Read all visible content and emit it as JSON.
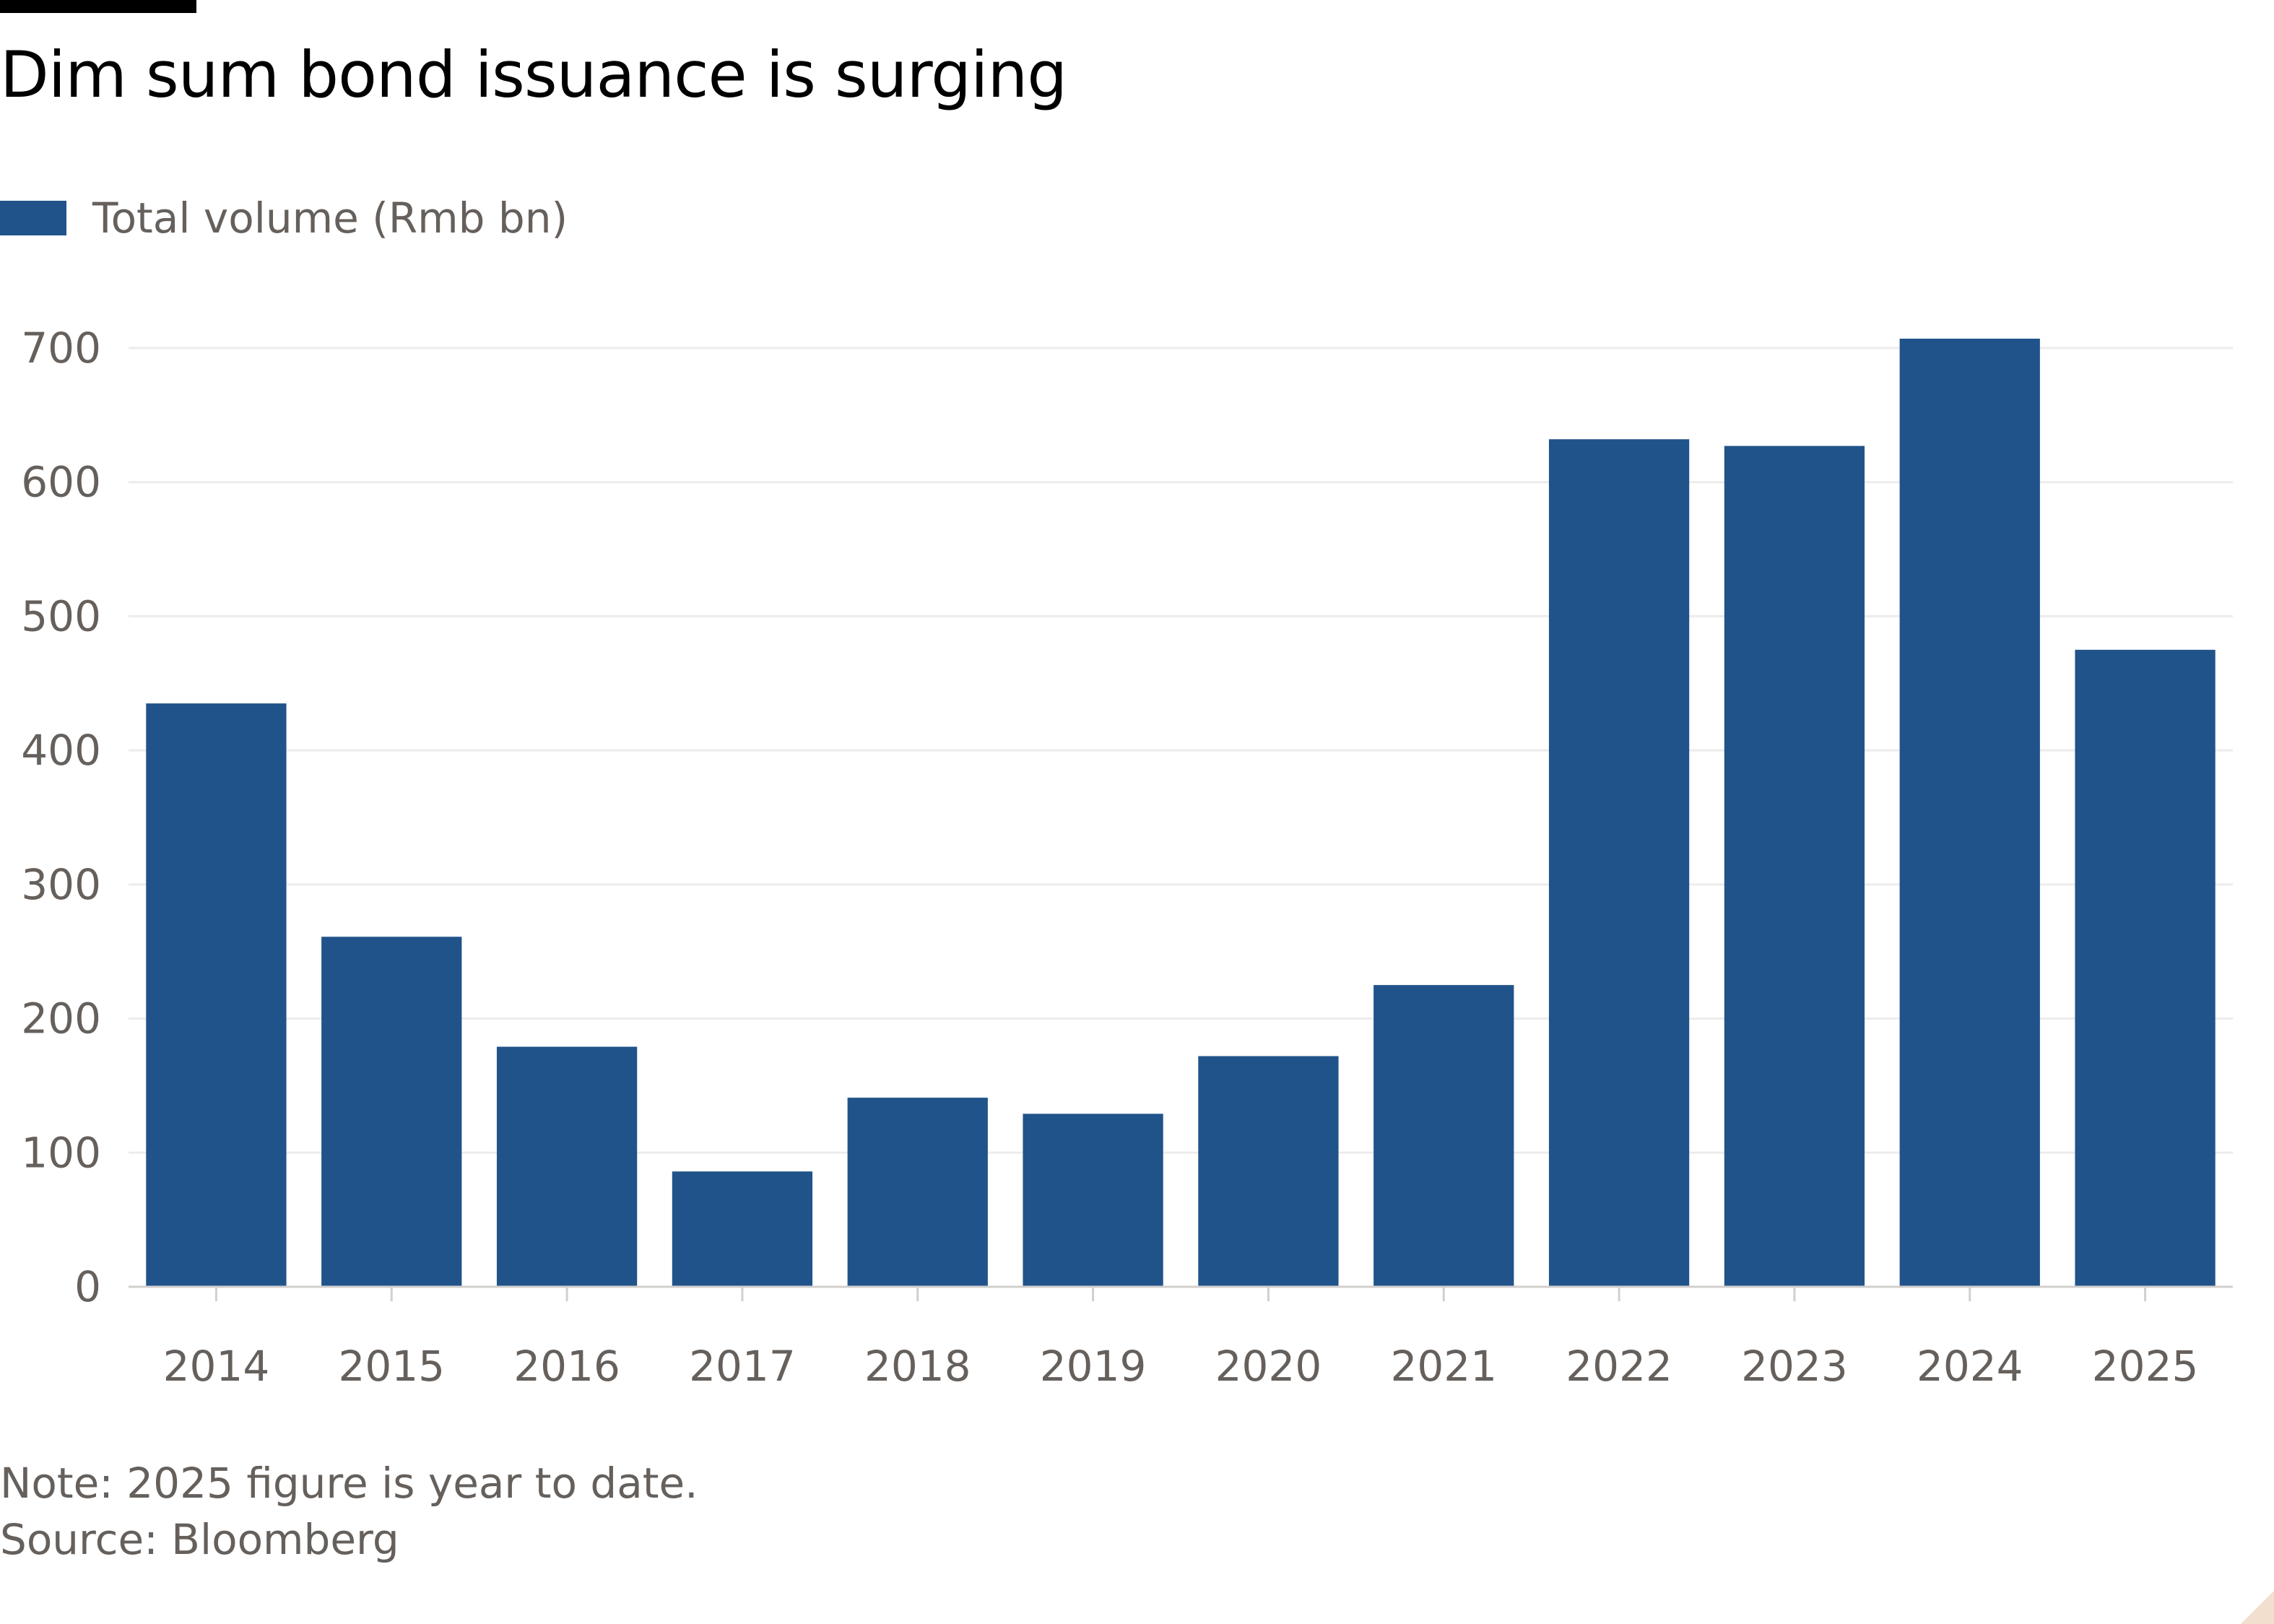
{
  "title": "Dim sum bond issuance is surging",
  "legend": {
    "label": "Total volume (Rmb bn)",
    "color": "#20538a"
  },
  "note": "Note: 2025 figure is year to date.",
  "source": "Source: Bloomberg",
  "chart_data": {
    "type": "bar",
    "categories": [
      "2014",
      "2015",
      "2016",
      "2017",
      "2018",
      "2019",
      "2020",
      "2021",
      "2022",
      "2023",
      "2024",
      "2025"
    ],
    "series": [
      {
        "name": "Total volume (Rmb bn)",
        "color": "#20538a",
        "values": [
          435,
          261,
          179,
          86,
          141,
          129,
          172,
          225,
          632,
          627,
          707,
          475
        ]
      }
    ],
    "title": "Dim sum bond issuance is surging",
    "xlabel": "",
    "ylabel": "",
    "ylim": [
      0,
      700
    ],
    "yticks": [
      0,
      100,
      200,
      300,
      400,
      500,
      600,
      700
    ],
    "grid": true,
    "legend_position": "top-left"
  }
}
